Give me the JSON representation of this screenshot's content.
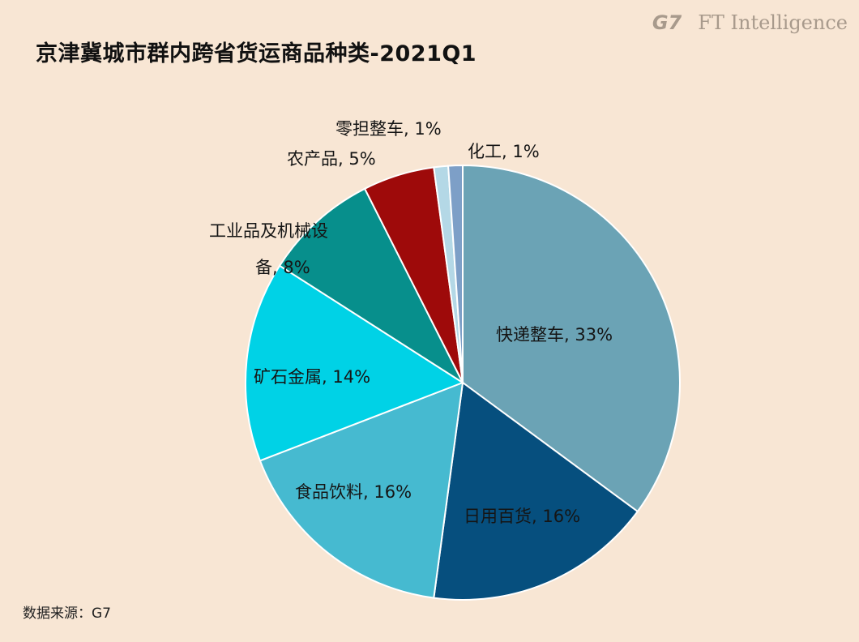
{
  "brand": {
    "g7": "G7",
    "ft": "FT Intelligence"
  },
  "source": "数据来源：G7",
  "chart_data": {
    "type": "pie",
    "title": "京津冀城市群内跨省货运商品种类-2021Q1",
    "slices": [
      {
        "label": "快递整车",
        "value": 33,
        "display": "快递整车, 33%",
        "color": "#6ba3b5"
      },
      {
        "label": "日用百货",
        "value": 16,
        "display": "日用百货, 16%",
        "color": "#064f7e"
      },
      {
        "label": "食品饮料",
        "value": 16,
        "display": "食品饮料, 16%",
        "color": "#46bad0"
      },
      {
        "label": "矿石金属",
        "value": 14,
        "display": "矿石金属, 14%",
        "color": "#00d2e6"
      },
      {
        "label": "工业品及机械设备",
        "value": 8,
        "display_line1": "工业品及机械设",
        "display_line2": "备, 8%",
        "color": "#078f8c"
      },
      {
        "label": "农产品",
        "value": 5,
        "display": "农产品, 5%",
        "color": "#9e0a0a"
      },
      {
        "label": "零担整车",
        "value": 1,
        "display": "零担整车, 1%",
        "color": "#b4d8e6"
      },
      {
        "label": "化工",
        "value": 1,
        "display": "化工, 1%",
        "color": "#7d9fc7"
      }
    ]
  }
}
